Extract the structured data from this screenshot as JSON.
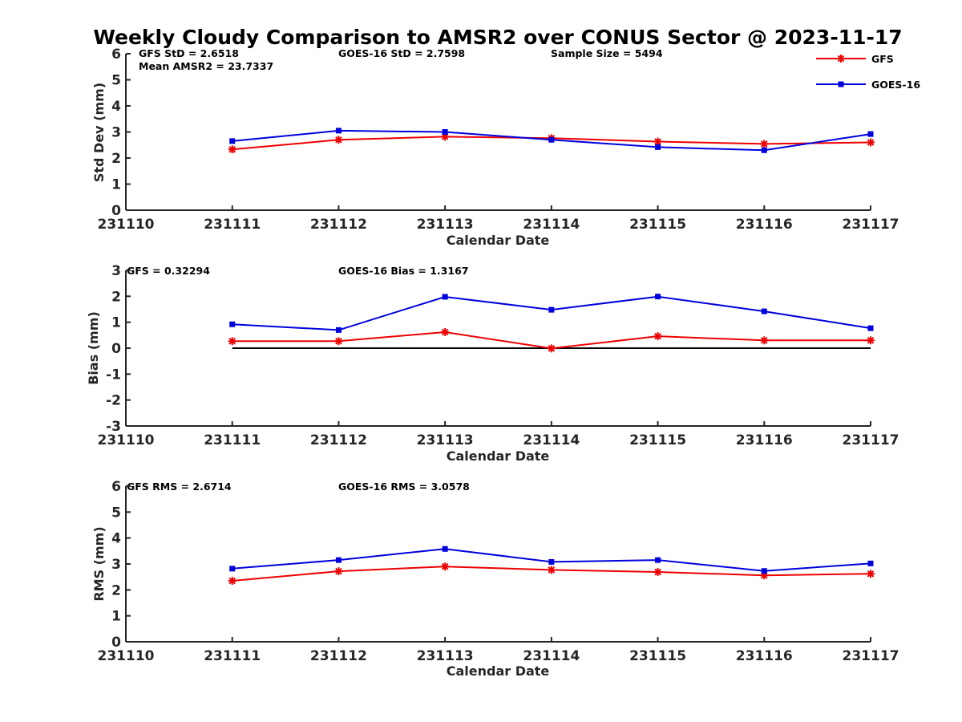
{
  "title": "Weekly Cloudy Comparison to AMSR2 over CONUS Sector @ 2023-11-17",
  "colors": {
    "GFS": "#ee0000",
    "GOES-16": "#0000dd",
    "zero_line": "#000000",
    "axes": "#262626"
  },
  "legend": {
    "placement": "top-right",
    "entries": [
      "GFS",
      "GOES-16"
    ]
  },
  "chart_data": [
    {
      "type": "line",
      "id": "std",
      "xlabel": "Calendar Date",
      "ylabel": "Std Dev (mm)",
      "x_ticks": [
        "231110",
        "231111",
        "231112",
        "231113",
        "231114",
        "231115",
        "231116",
        "231117"
      ],
      "ylim": [
        0,
        6
      ],
      "y_ticks": [
        "0",
        "1",
        "2",
        "3",
        "4",
        "5",
        "6"
      ],
      "x": [
        "231111",
        "231112",
        "231113",
        "231114",
        "231115",
        "231116",
        "231117"
      ],
      "series": [
        {
          "name": "GFS",
          "marker": "asterisk",
          "values": [
            2.33,
            2.7,
            2.82,
            2.76,
            2.63,
            2.54,
            2.6
          ]
        },
        {
          "name": "GOES-16",
          "marker": "square",
          "values": [
            2.65,
            3.05,
            3.0,
            2.7,
            2.42,
            2.3,
            2.92
          ]
        }
      ],
      "annotations": [
        "GFS StD = 2.6518",
        "Mean AMSR2 = 23.7337",
        "GOES-16 StD = 2.7598",
        "Sample Size = 5494"
      ]
    },
    {
      "type": "line",
      "id": "bias",
      "xlabel": "Calendar Date",
      "ylabel": "Bias (mm)",
      "x_ticks": [
        "231110",
        "231111",
        "231112",
        "231113",
        "231114",
        "231115",
        "231116",
        "231117"
      ],
      "ylim": [
        -3,
        3
      ],
      "y_ticks": [
        "-3",
        "-2",
        "-1",
        "0",
        "1",
        "2",
        "3"
      ],
      "x": [
        "231111",
        "231112",
        "231113",
        "231114",
        "231115",
        "231116",
        "231117"
      ],
      "series": [
        {
          "name": "GFS",
          "marker": "asterisk",
          "values": [
            0.27,
            0.27,
            0.62,
            -0.01,
            0.46,
            0.3,
            0.3
          ]
        },
        {
          "name": "GOES-16",
          "marker": "square",
          "values": [
            0.92,
            0.7,
            1.98,
            1.48,
            1.99,
            1.42,
            0.77
          ]
        }
      ],
      "zero_line": true,
      "annotations": [
        "GFS = 0.32294",
        "GOES-16 Bias  = 1.3167"
      ]
    },
    {
      "type": "line",
      "id": "rms",
      "xlabel": "Calendar Date",
      "ylabel": "RMS (mm)",
      "x_ticks": [
        "231110",
        "231111",
        "231112",
        "231113",
        "231114",
        "231115",
        "231116",
        "231117"
      ],
      "ylim": [
        0,
        6
      ],
      "y_ticks": [
        "0",
        "1",
        "2",
        "3",
        "4",
        "5",
        "6"
      ],
      "x": [
        "231111",
        "231112",
        "231113",
        "231114",
        "231115",
        "231116",
        "231117"
      ],
      "series": [
        {
          "name": "GFS",
          "marker": "asterisk",
          "values": [
            2.35,
            2.72,
            2.9,
            2.77,
            2.69,
            2.56,
            2.62
          ]
        },
        {
          "name": "GOES-16",
          "marker": "square",
          "values": [
            2.82,
            3.15,
            3.58,
            3.08,
            3.15,
            2.73,
            3.02
          ]
        }
      ],
      "annotations": [
        "GFS RMS = 2.6714",
        "GOES-16 RMS = 3.0578"
      ]
    }
  ]
}
